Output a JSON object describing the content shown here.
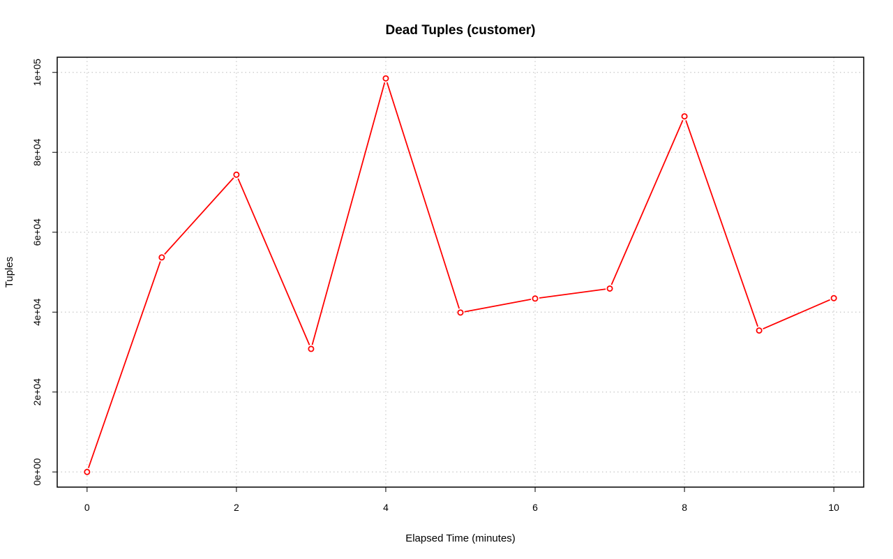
{
  "chart_data": {
    "type": "line",
    "title": "Dead Tuples (customer)",
    "xlabel": "Elapsed Time (minutes)",
    "ylabel": "Tuples",
    "x": [
      0,
      1,
      2,
      3,
      4,
      5,
      6,
      7,
      8,
      9,
      10
    ],
    "series": [
      {
        "values": [
          0,
          53700,
          74400,
          30800,
          98500,
          39900,
          43400,
          45900,
          89000,
          35400,
          43500
        ],
        "color": "#ff0000",
        "marker": "open-circle"
      }
    ],
    "xlim": [
      -0.4,
      10.4
    ],
    "ylim": [
      -3800,
      103800
    ],
    "x_ticks": [
      0,
      2,
      4,
      6,
      8,
      10
    ],
    "x_tick_labels": [
      "0",
      "2",
      "4",
      "6",
      "8",
      "10"
    ],
    "y_ticks": [
      0,
      20000,
      40000,
      60000,
      80000,
      100000
    ],
    "y_tick_labels": [
      "0e+00",
      "2e+04",
      "4e+04",
      "6e+04",
      "8e+04",
      "1e+05"
    ],
    "grid": true,
    "grid_style": "dotted",
    "legend": "none"
  }
}
